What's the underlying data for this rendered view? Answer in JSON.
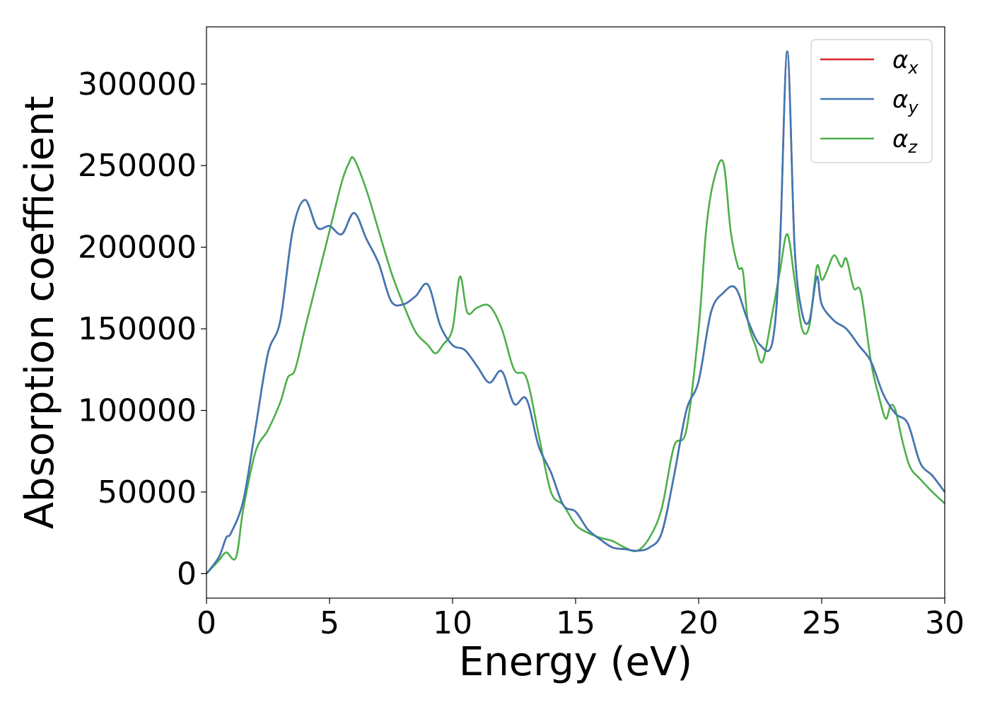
{
  "chart_data": {
    "type": "line",
    "title": "",
    "xlabel": "Energy (eV)",
    "ylabel": "Absorption coefficient",
    "xlim": [
      0,
      30
    ],
    "ylim": [
      -15000,
      335000
    ],
    "xticks": [
      0,
      5,
      10,
      15,
      20,
      25,
      30
    ],
    "xtick_labels": [
      "0",
      "5",
      "10",
      "15",
      "20",
      "25",
      "30"
    ],
    "yticks": [
      0,
      50000,
      100000,
      150000,
      200000,
      250000,
      300000
    ],
    "ytick_labels": [
      "0",
      "50000",
      "100000",
      "150000",
      "200000",
      "250000",
      "300000"
    ],
    "grid": false,
    "legend_position": "top-right",
    "series": [
      {
        "name": "αx",
        "legend_base": "α",
        "legend_sub": "x",
        "color": "#d62728",
        "x": [
          0,
          0.5,
          0.8,
          1.0,
          1.5,
          2.0,
          2.5,
          3.0,
          3.5,
          4.0,
          4.5,
          5.0,
          5.5,
          6.0,
          6.5,
          7.0,
          7.5,
          8.0,
          8.5,
          9.0,
          9.5,
          10.0,
          10.5,
          11.0,
          11.5,
          12.0,
          12.5,
          13.0,
          13.5,
          14.0,
          14.5,
          15.0,
          15.5,
          16.0,
          16.5,
          17.0,
          17.5,
          18.0,
          18.5,
          19.0,
          19.5,
          20.0,
          20.5,
          21.0,
          21.5,
          22.0,
          22.5,
          23.0,
          23.3,
          23.6,
          23.9,
          24.2,
          24.5,
          24.8,
          25.0,
          25.5,
          26.0,
          26.5,
          27.0,
          27.5,
          28.0,
          28.5,
          29.0,
          29.5,
          30.0
        ],
        "y": [
          0,
          10000,
          22000,
          25000,
          45000,
          90000,
          135000,
          155000,
          210000,
          229000,
          212000,
          213000,
          208000,
          221000,
          205000,
          190000,
          167000,
          165000,
          170000,
          177000,
          152000,
          140000,
          137000,
          127000,
          117000,
          124000,
          104000,
          107000,
          78000,
          62000,
          42000,
          38000,
          27000,
          21000,
          16000,
          15000,
          14000,
          16000,
          25000,
          60000,
          100000,
          118000,
          160000,
          172000,
          175000,
          155000,
          140000,
          142000,
          200000,
          320000,
          200000,
          160000,
          155000,
          182000,
          165000,
          155000,
          150000,
          140000,
          130000,
          110000,
          98000,
          92000,
          68000,
          60000,
          50000
        ]
      },
      {
        "name": "αy",
        "legend_base": "α",
        "legend_sub": "y",
        "color": "#3f78b5",
        "x": [
          0,
          0.5,
          0.8,
          1.0,
          1.5,
          2.0,
          2.5,
          3.0,
          3.5,
          4.0,
          4.5,
          5.0,
          5.5,
          6.0,
          6.5,
          7.0,
          7.5,
          8.0,
          8.5,
          9.0,
          9.5,
          10.0,
          10.5,
          11.0,
          11.5,
          12.0,
          12.5,
          13.0,
          13.5,
          14.0,
          14.5,
          15.0,
          15.5,
          16.0,
          16.5,
          17.0,
          17.5,
          18.0,
          18.5,
          19.0,
          19.5,
          20.0,
          20.5,
          21.0,
          21.5,
          22.0,
          22.5,
          23.0,
          23.3,
          23.6,
          23.9,
          24.2,
          24.5,
          24.8,
          25.0,
          25.5,
          26.0,
          26.5,
          27.0,
          27.5,
          28.0,
          28.5,
          29.0,
          29.5,
          30.0
        ],
        "y": [
          0,
          10000,
          22000,
          25000,
          45000,
          90000,
          135000,
          155000,
          210000,
          229000,
          212000,
          213000,
          208000,
          221000,
          205000,
          190000,
          167000,
          165000,
          170000,
          177000,
          152000,
          140000,
          137000,
          127000,
          117000,
          124000,
          104000,
          107000,
          78000,
          62000,
          42000,
          38000,
          27000,
          21000,
          16000,
          15000,
          14000,
          16000,
          25000,
          60000,
          100000,
          118000,
          160000,
          172000,
          175000,
          155000,
          140000,
          142000,
          200000,
          320000,
          200000,
          160000,
          155000,
          182000,
          165000,
          155000,
          150000,
          140000,
          130000,
          110000,
          98000,
          92000,
          68000,
          60000,
          50000
        ]
      },
      {
        "name": "αz",
        "legend_base": "α",
        "legend_sub": "z",
        "color": "#4daf4a",
        "x": [
          0,
          0.5,
          0.8,
          1.2,
          1.5,
          2.0,
          2.5,
          3.0,
          3.3,
          3.6,
          4.0,
          4.5,
          5.0,
          5.5,
          5.8,
          6.0,
          6.5,
          7.0,
          7.5,
          8.0,
          8.5,
          9.0,
          9.3,
          9.6,
          10.0,
          10.3,
          10.6,
          11.0,
          11.5,
          12.0,
          12.5,
          13.0,
          13.5,
          14.0,
          14.5,
          15.0,
          15.5,
          16.0,
          16.5,
          17.0,
          17.5,
          18.0,
          18.5,
          19.0,
          19.5,
          20.0,
          20.3,
          20.6,
          21.0,
          21.3,
          21.6,
          21.8,
          22.0,
          22.3,
          22.6,
          23.0,
          23.3,
          23.6,
          23.9,
          24.2,
          24.5,
          24.8,
          25.0,
          25.2,
          25.5,
          25.8,
          26.0,
          26.3,
          26.6,
          27.0,
          27.3,
          27.6,
          27.8,
          28.0,
          28.3,
          28.6,
          29.0,
          29.5,
          30.0
        ],
        "y": [
          0,
          8000,
          13000,
          10000,
          40000,
          75000,
          88000,
          105000,
          120000,
          125000,
          150000,
          180000,
          210000,
          240000,
          252000,
          254000,
          235000,
          210000,
          185000,
          165000,
          148000,
          140000,
          135000,
          140000,
          150000,
          182000,
          160000,
          163000,
          164000,
          150000,
          125000,
          120000,
          85000,
          50000,
          42000,
          30000,
          25000,
          22000,
          20000,
          16000,
          14000,
          22000,
          40000,
          78000,
          88000,
          150000,
          210000,
          240000,
          252000,
          210000,
          188000,
          185000,
          155000,
          140000,
          130000,
          160000,
          185000,
          208000,
          180000,
          150000,
          152000,
          188000,
          180000,
          185000,
          195000,
          188000,
          193000,
          175000,
          172000,
          130000,
          110000,
          95000,
          103000,
          100000,
          80000,
          65000,
          58000,
          50000,
          43000
        ]
      }
    ]
  }
}
